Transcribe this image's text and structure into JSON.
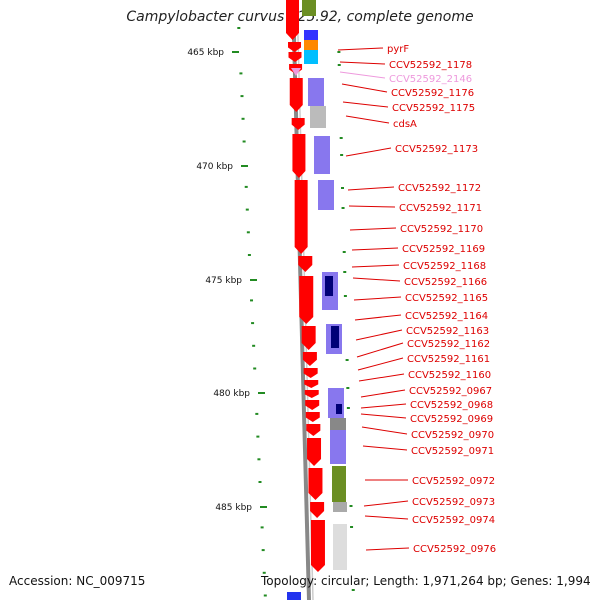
{
  "title": "Campylobacter curvus 525.92, complete genome",
  "accession": "Accession: NC_009715",
  "topology": "Topology: circular; Length: 1,971,264 bp; Genes: 1,994",
  "colors": {
    "forward_cds": "#ff0000",
    "label_red": "#dd0000",
    "label_pink": "#ee99dd",
    "tick_green": "#228b22",
    "backbone": "#888888"
  },
  "kbp_ticks": [
    "465 kbp",
    "470 kbp",
    "475 kbp",
    "480 kbp",
    "485 kbp"
  ],
  "gene_labels": [
    {
      "text": "pyrF",
      "color": "red"
    },
    {
      "text": "CCV52592_1178",
      "color": "red"
    },
    {
      "text": "CCV52592_2146",
      "color": "pink"
    },
    {
      "text": "CCV52592_1176",
      "color": "red"
    },
    {
      "text": "CCV52592_1175",
      "color": "red"
    },
    {
      "text": "cdsA",
      "color": "red"
    },
    {
      "text": "CCV52592_1173",
      "color": "red"
    },
    {
      "text": "CCV52592_1172",
      "color": "red"
    },
    {
      "text": "CCV52592_1171",
      "color": "red"
    },
    {
      "text": "CCV52592_1170",
      "color": "red"
    },
    {
      "text": "CCV52592_1169",
      "color": "red"
    },
    {
      "text": "CCV52592_1168",
      "color": "red"
    },
    {
      "text": "CCV52592_1166",
      "color": "red"
    },
    {
      "text": "CCV52592_1165",
      "color": "red"
    },
    {
      "text": "CCV52592_1164",
      "color": "red"
    },
    {
      "text": "CCV52592_1163",
      "color": "red"
    },
    {
      "text": "CCV52592_1162",
      "color": "red"
    },
    {
      "text": "CCV52592_1161",
      "color": "red"
    },
    {
      "text": "CCV52592_1160",
      "color": "red"
    },
    {
      "text": "CCV52592_0967",
      "color": "red"
    },
    {
      "text": "CCV52592_0968",
      "color": "red"
    },
    {
      "text": "CCV52592_0969",
      "color": "red"
    },
    {
      "text": "CCV52592_0970",
      "color": "red"
    },
    {
      "text": "CCV52592_0971",
      "color": "red"
    },
    {
      "text": "CCV52592_0972",
      "color": "red"
    },
    {
      "text": "CCV52592_0973",
      "color": "red"
    },
    {
      "text": "CCV52592_0974",
      "color": "red"
    },
    {
      "text": "CCV52592_0976",
      "color": "red"
    }
  ]
}
